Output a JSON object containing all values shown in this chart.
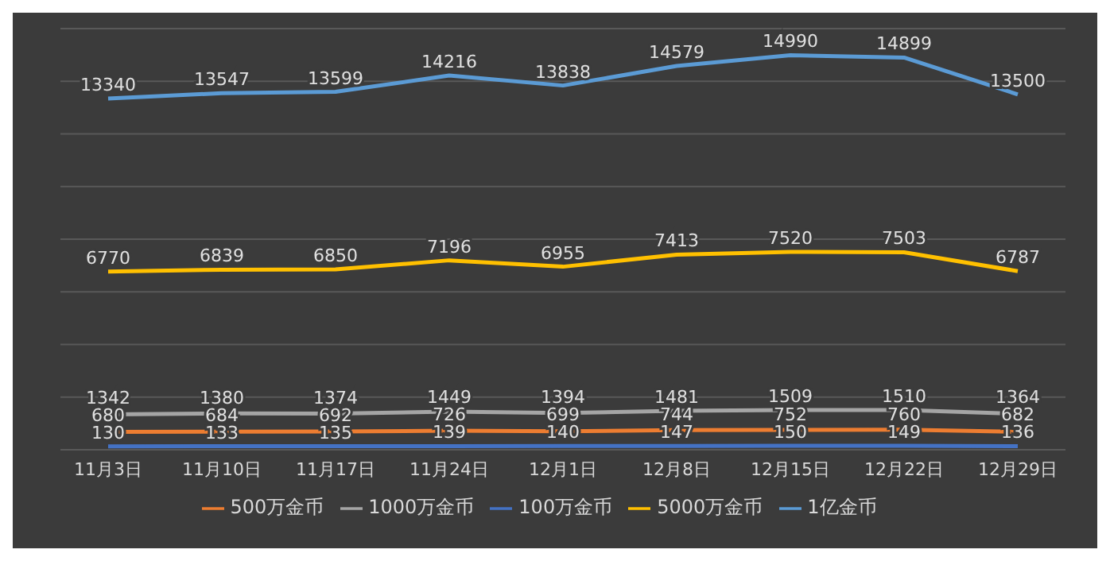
{
  "chart_data": {
    "type": "line",
    "categories": [
      "11月3日",
      "11月10日",
      "11月17日",
      "11月24日",
      "12月1日",
      "12月8日",
      "12月15日",
      "12月22日",
      "12月29日"
    ],
    "series": [
      {
        "name": "500万金币",
        "color": "#ed7d31",
        "values": [
          680,
          684,
          692,
          726,
          699,
          744,
          752,
          760,
          682
        ]
      },
      {
        "name": "1000万金币",
        "color": "#a5a5a5",
        "values": [
          1342,
          1380,
          1374,
          1449,
          1394,
          1481,
          1509,
          1510,
          1364
        ]
      },
      {
        "name": "100万金币",
        "color": "#4472c4",
        "values": [
          130,
          133,
          135,
          139,
          140,
          147,
          150,
          149,
          136
        ]
      },
      {
        "name": "5000万金币",
        "color": "#ffc000",
        "values": [
          6770,
          6839,
          6850,
          7196,
          6955,
          7413,
          7520,
          7503,
          6787
        ]
      },
      {
        "name": "1亿金币",
        "color": "#5b9bd5",
        "values": [
          13340,
          13547,
          13599,
          14216,
          13838,
          14579,
          14990,
          14899,
          13500
        ]
      }
    ],
    "tick_labels": "x",
    "grid": "y",
    "legend": "bottom",
    "data_labels": true,
    "marker": "none",
    "line_style": "solid"
  }
}
